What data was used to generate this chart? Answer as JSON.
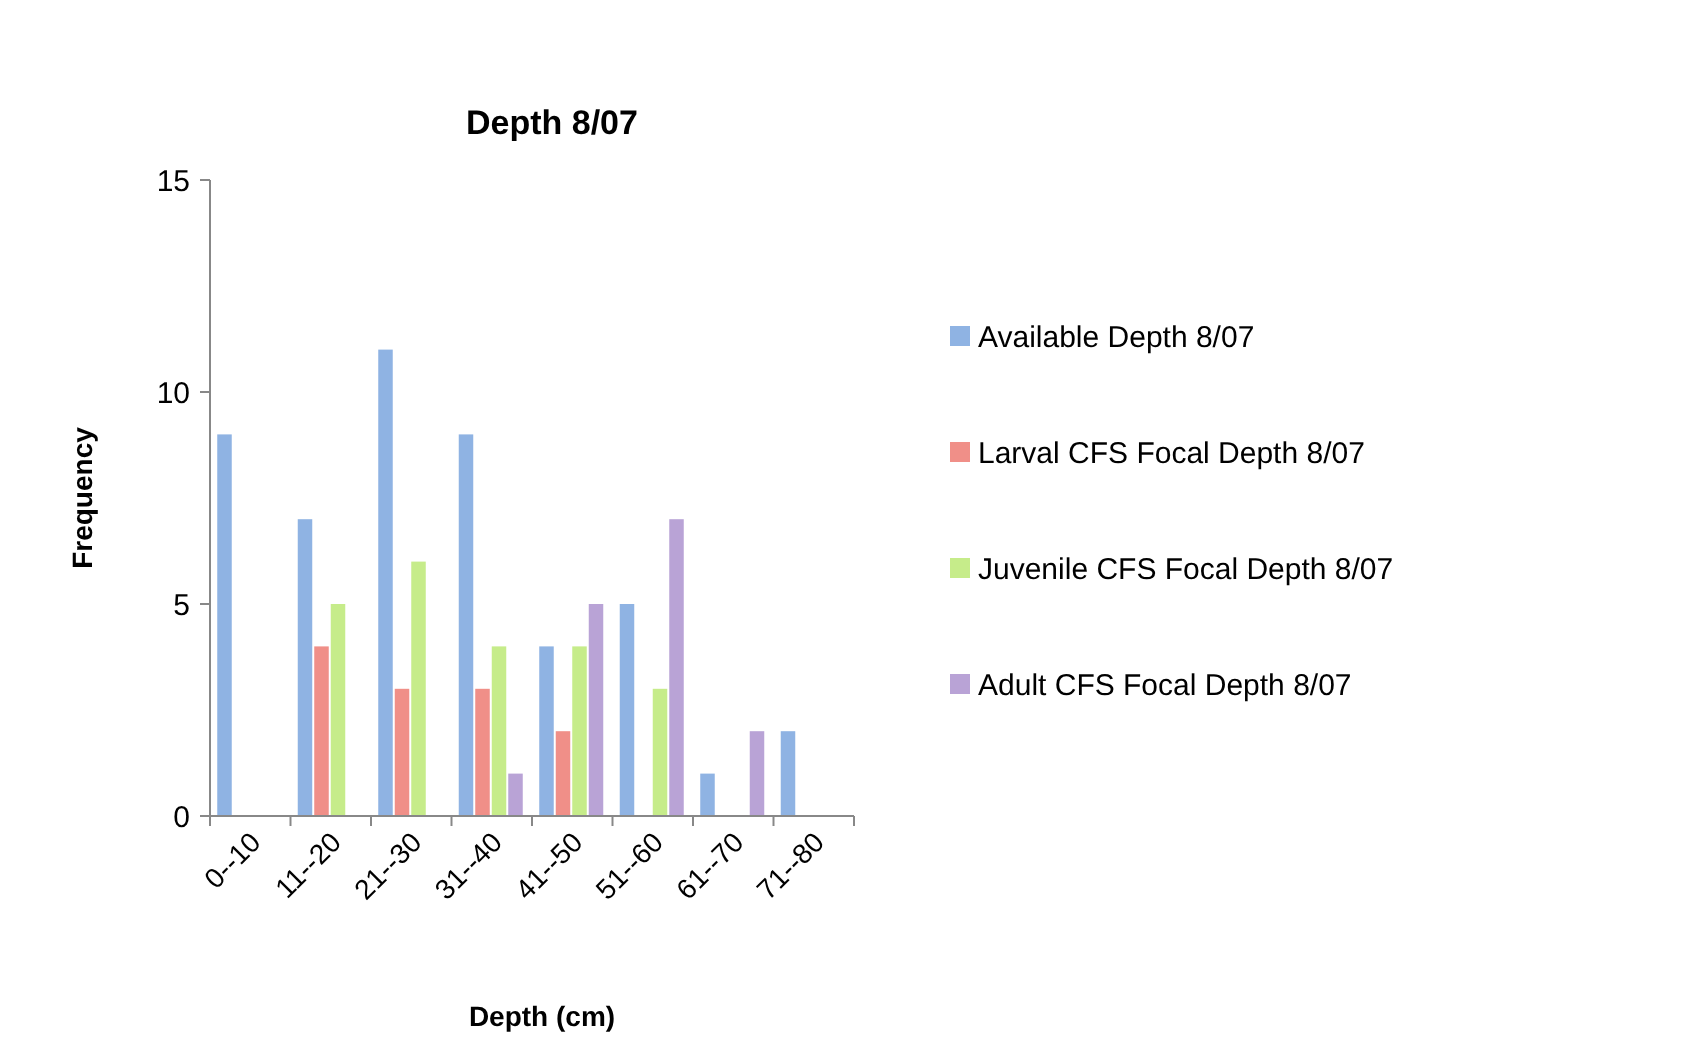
{
  "chart_data": {
    "type": "bar",
    "title": "Depth 8/07",
    "xlabel": "Depth (cm)",
    "ylabel": "Frequency",
    "categories": [
      "0--10",
      "11--20",
      "21--30",
      "31--40",
      "41--50",
      "51--60",
      "61--70",
      "71--80"
    ],
    "series": [
      {
        "name": "Available Depth 8/07",
        "color": "#8fb3e3",
        "values": [
          9,
          7,
          11,
          9,
          4,
          5,
          1,
          2
        ]
      },
      {
        "name": "Larval CFS Focal Depth 8/07",
        "color": "#f08f88",
        "values": [
          0,
          4,
          3,
          3,
          2,
          0,
          0,
          0
        ]
      },
      {
        "name": "Juvenile CFS Focal Depth 8/07",
        "color": "#c6ec8a",
        "values": [
          0,
          5,
          6,
          4,
          4,
          3,
          0,
          0
        ]
      },
      {
        "name": "Adult CFS Focal Depth 8/07",
        "color": "#b9a3d6",
        "values": [
          0,
          0,
          0,
          1,
          5,
          7,
          2,
          0
        ]
      }
    ],
    "ylim": [
      0,
      15
    ],
    "yticks": [
      0,
      5,
      10,
      15
    ],
    "grid": false,
    "legend": "right"
  }
}
